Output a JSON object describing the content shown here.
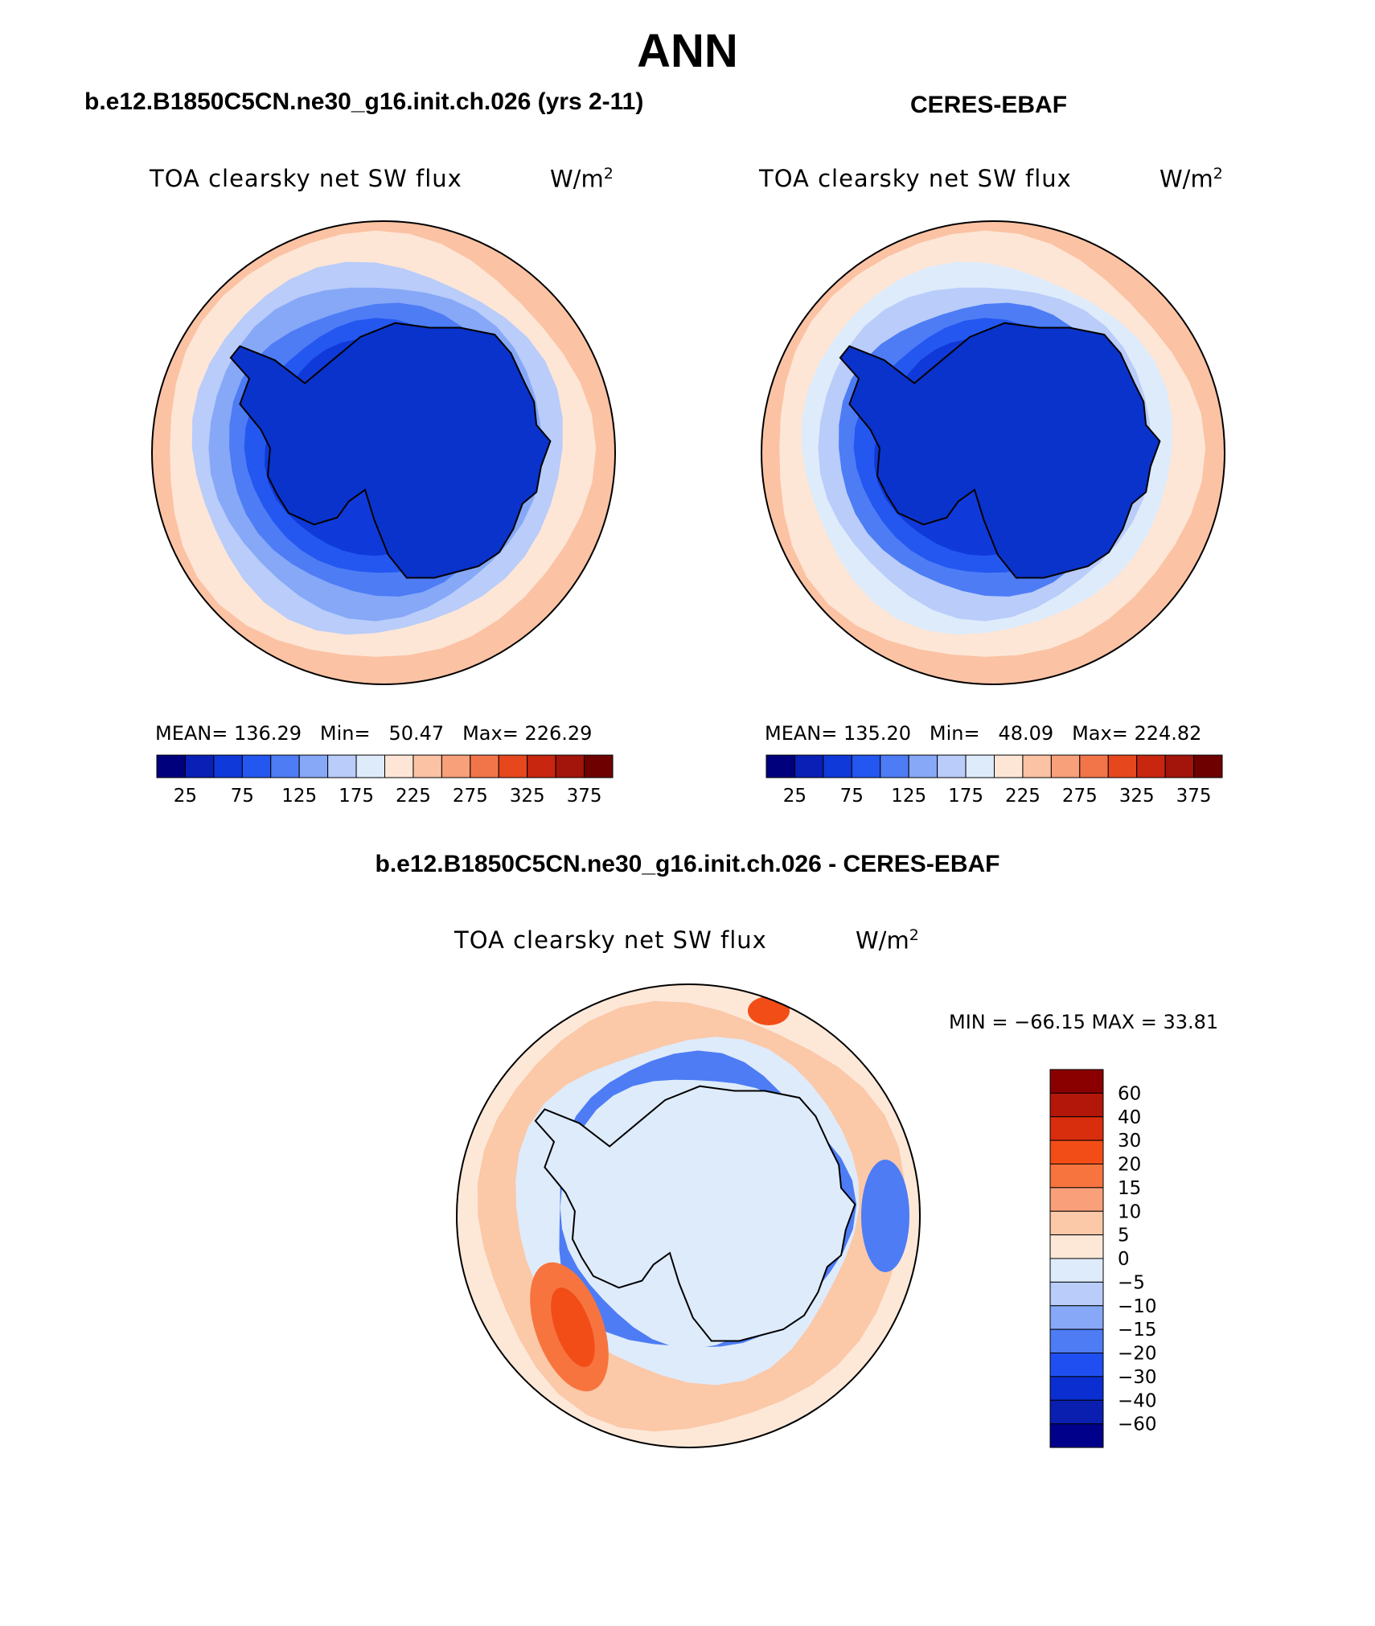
{
  "title": "ANN",
  "colors": {
    "land": "#0a33cc",
    "coast": "#000000",
    "outline": "#000000"
  },
  "panel_left": {
    "case_title": "b.e12.B1850C5CN.ne30_g16.init.ch.026 (yrs 2-11)",
    "label": "TOA clearsky net SW flux",
    "units": "W/m",
    "units_exp": "2",
    "stats": {
      "mean_label": "MEAN=",
      "mean": "136.29",
      "min_label": "Min=",
      "min": "50.47",
      "max_label": "Max=",
      "max": "226.29"
    }
  },
  "panel_right": {
    "case_title": "CERES-EBAF",
    "label": "TOA clearsky net SW flux",
    "units": "W/m",
    "units_exp": "2",
    "stats": {
      "mean_label": "MEAN=",
      "mean": "135.20",
      "min_label": "Min=",
      "min": "48.09",
      "max_label": "Max=",
      "max": "224.82"
    }
  },
  "panel_diff": {
    "case_title": "b.e12.B1850C5CN.ne30_g16.init.ch.026 - CERES-EBAF",
    "label": "TOA clearsky net SW flux",
    "units": "W/m",
    "units_exp": "2",
    "stats_text": "MIN = −66.15 MAX =   33.81"
  },
  "chart_data": [
    {
      "type": "heatmap",
      "projection": "south-polar-stereographic",
      "title": "TOA clearsky net SW flux",
      "units": "W/m2",
      "contour_levels": [
        25,
        50,
        75,
        100,
        125,
        150,
        175,
        200,
        225,
        250,
        275,
        300,
        325,
        350,
        375
      ],
      "colorbar_ticks": [
        "25",
        "75",
        "125",
        "175",
        "225",
        "275",
        "325",
        "375"
      ],
      "colorbar_colors": [
        "#00007d",
        "#0a1fb5",
        "#0f3ad9",
        "#2457f0",
        "#4d7cf5",
        "#86a8f7",
        "#b9ccfa",
        "#deebfb",
        "#fde6d6",
        "#fbc2a4",
        "#f7a07a",
        "#f2754a",
        "#e6471c",
        "#c8260f",
        "#a3140a",
        "#6e0000"
      ],
      "rings_inner_to_outer": [
        60,
        80,
        110,
        140,
        170,
        200,
        225
      ],
      "mean": 136.29,
      "min": 50.47,
      "max": 226.29
    },
    {
      "type": "heatmap",
      "projection": "south-polar-stereographic",
      "title": "TOA clearsky net SW flux",
      "units": "W/m2",
      "contour_levels": [
        25,
        50,
        75,
        100,
        125,
        150,
        175,
        200,
        225,
        250,
        275,
        300,
        325,
        350,
        375
      ],
      "colorbar_ticks": [
        "25",
        "75",
        "125",
        "175",
        "225",
        "275",
        "325",
        "375"
      ],
      "colorbar_colors": [
        "#00007d",
        "#0a1fb5",
        "#0f3ad9",
        "#2457f0",
        "#4d7cf5",
        "#86a8f7",
        "#b9ccfa",
        "#deebfb",
        "#fde6d6",
        "#fbc2a4",
        "#f7a07a",
        "#f2754a",
        "#e6471c",
        "#c8260f",
        "#a3140a",
        "#6e0000"
      ],
      "rings_inner_to_outer": [
        60,
        90,
        120,
        150,
        180,
        205,
        225
      ],
      "mean": 135.2,
      "min": 48.09,
      "max": 224.82
    },
    {
      "type": "heatmap",
      "projection": "south-polar-stereographic",
      "title": "TOA clearsky net SW flux",
      "units": "W/m2",
      "contour_levels": [
        -60,
        -40,
        -30,
        -20,
        -15,
        -10,
        -5,
        0,
        5,
        10,
        15,
        20,
        30,
        40,
        60
      ],
      "colorbar_ticks": [
        "60",
        "40",
        "30",
        "20",
        "15",
        "10",
        "5",
        "0",
        "−5",
        "−10",
        "−15",
        "−20",
        "−30",
        "−40",
        "−60"
      ],
      "colorbar_colors_top_to_bottom": [
        "#8a0000",
        "#b3170a",
        "#d92e0d",
        "#f24d17",
        "#f7743f",
        "#f9a07a",
        "#fbc8a8",
        "#fde8d8",
        "#deebfb",
        "#b9ccfa",
        "#86a8f7",
        "#4d7cf5",
        "#1f4ff0",
        "#0a2ed0",
        "#0a1fb0",
        "#00008a"
      ],
      "min": -66.15,
      "max": 33.81
    }
  ]
}
